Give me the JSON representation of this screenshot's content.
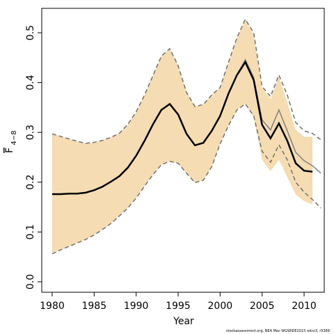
{
  "chart_data": {
    "type": "line",
    "xlabel": "Year",
    "ylabel": "F",
    "ylabel_sub": "4−8",
    "footnote": "stockassessment.org, NEA Mac WGWIDE2015 retro3, r5369",
    "x": [
      1980,
      1981,
      1982,
      1983,
      1984,
      1985,
      1986,
      1987,
      1988,
      1989,
      1990,
      1991,
      1992,
      1993,
      1994,
      1995,
      1996,
      1997,
      1998,
      1999,
      2000,
      2001,
      2002,
      2003,
      2004,
      2005,
      2006,
      2007,
      2008,
      2009,
      2010,
      2011,
      2012
    ],
    "band": {
      "color": "#f5dcb2",
      "upper": [
        0.297,
        0.292,
        0.287,
        0.282,
        0.278,
        0.28,
        0.284,
        0.29,
        0.298,
        0.316,
        0.341,
        0.375,
        0.414,
        0.453,
        0.468,
        0.434,
        0.38,
        0.352,
        0.356,
        0.375,
        0.39,
        0.441,
        0.49,
        0.527,
        0.497,
        0.39,
        0.367,
        0.412,
        0.36,
        0.305,
        0.291,
        0.291,
        null
      ],
      "lower": [
        0.056,
        0.064,
        0.071,
        0.078,
        0.085,
        0.094,
        0.105,
        0.117,
        0.132,
        0.148,
        0.168,
        0.192,
        0.215,
        0.235,
        0.242,
        0.238,
        0.218,
        0.199,
        0.204,
        0.231,
        0.277,
        0.314,
        0.345,
        0.357,
        0.33,
        0.245,
        0.222,
        0.245,
        0.21,
        0.175,
        0.162,
        0.155,
        null
      ]
    },
    "series": [
      {
        "color": "#707070",
        "dash": true,
        "width": 1.5,
        "values": [
          0.297,
          0.292,
          0.287,
          0.282,
          0.278,
          0.28,
          0.284,
          0.29,
          0.298,
          0.316,
          0.341,
          0.375,
          0.414,
          0.453,
          0.468,
          0.434,
          0.38,
          0.352,
          0.356,
          0.375,
          0.39,
          0.441,
          0.49,
          0.527,
          0.5,
          0.392,
          0.372,
          0.415,
          0.375,
          0.32,
          0.303,
          0.298,
          0.285
        ]
      },
      {
        "color": "#707070",
        "dash": true,
        "width": 1.5,
        "values": [
          0.056,
          0.064,
          0.071,
          0.078,
          0.085,
          0.094,
          0.105,
          0.117,
          0.132,
          0.148,
          0.168,
          0.192,
          0.215,
          0.235,
          0.242,
          0.238,
          0.218,
          0.199,
          0.204,
          0.231,
          0.277,
          0.314,
          0.345,
          0.357,
          0.333,
          0.262,
          0.24,
          0.275,
          0.245,
          0.2,
          0.18,
          0.165,
          0.148
        ]
      },
      {
        "color": "#808080",
        "dash": false,
        "width": 1.5,
        "values": [
          0.176,
          0.176,
          0.177,
          0.177,
          0.179,
          0.184,
          0.191,
          0.201,
          0.212,
          0.229,
          0.253,
          0.283,
          0.316,
          0.345,
          0.357,
          0.336,
          0.297,
          0.274,
          0.279,
          0.303,
          0.333,
          0.378,
          0.416,
          0.446,
          0.41,
          0.325,
          0.305,
          0.345,
          0.303,
          0.26,
          0.243,
          0.233,
          0.218
        ]
      },
      {
        "color": "#000000",
        "dash": false,
        "width": 2.5,
        "values": [
          0.176,
          0.176,
          0.177,
          0.177,
          0.179,
          0.184,
          0.191,
          0.201,
          0.212,
          0.229,
          0.253,
          0.283,
          0.316,
          0.345,
          0.357,
          0.336,
          0.297,
          0.274,
          0.279,
          0.303,
          0.333,
          0.378,
          0.415,
          0.441,
          0.405,
          0.315,
          0.288,
          0.318,
          0.283,
          0.238,
          0.223,
          0.221,
          null
        ]
      }
    ],
    "xlim": [
      1978.76,
      2012.4
    ],
    "xticks": [
      1980,
      1985,
      1990,
      1995,
      2000,
      2005,
      2010
    ],
    "ylim": [
      -0.021,
      0.549
    ],
    "yticks": [
      {
        "value": 0,
        "label": "0.0"
      },
      0.1,
      0.2,
      0.3,
      0.4,
      0.5
    ]
  }
}
